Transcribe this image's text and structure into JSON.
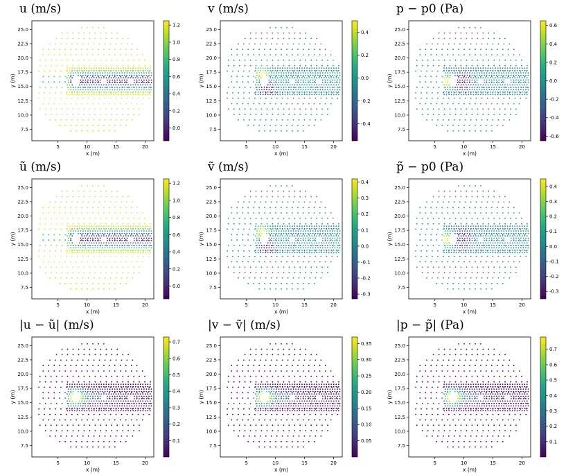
{
  "colormap": "viridis",
  "chart_data": [
    {
      "type": "scatter",
      "title": "u  (m/s)",
      "xlabel": "x (m)",
      "ylabel": "y (m)",
      "xlim": [
        0.5,
        21.5
      ],
      "ylim": [
        5.5,
        26.5
      ],
      "xticks": [
        5,
        10,
        15,
        20
      ],
      "yticks": [
        7.5,
        10.0,
        12.5,
        15.0,
        17.5,
        20.0,
        22.5,
        25.0
      ],
      "colorbar": {
        "min": -0.15,
        "max": 1.25,
        "ticks": [
          0.0,
          0.2,
          0.4,
          0.6,
          0.8,
          1.0,
          1.2
        ]
      },
      "field": "u"
    },
    {
      "type": "scatter",
      "title": "v  (m/s)",
      "xlabel": "x (m)",
      "ylabel": "y (m)",
      "xlim": [
        0.5,
        21.5
      ],
      "ylim": [
        5.5,
        26.5
      ],
      "xticks": [
        5,
        10,
        15,
        20
      ],
      "yticks": [
        7.5,
        10.0,
        12.5,
        15.0,
        17.5,
        20.0,
        22.5,
        25.0
      ],
      "colorbar": {
        "min": -0.55,
        "max": 0.5,
        "ticks": [
          -0.4,
          -0.2,
          0.0,
          0.2,
          0.4
        ]
      },
      "field": "v"
    },
    {
      "type": "scatter",
      "title": "p − p0  (Pa)",
      "xlabel": "x (m)",
      "ylabel": "y (m)",
      "xlim": [
        0.5,
        21.5
      ],
      "ylim": [
        5.5,
        26.5
      ],
      "xticks": [
        5,
        10,
        15,
        20
      ],
      "yticks": [
        7.5,
        10.0,
        12.5,
        15.0,
        17.5,
        20.0,
        22.5,
        25.0
      ],
      "colorbar": {
        "min": -0.65,
        "max": 0.65,
        "ticks": [
          -0.6,
          -0.4,
          -0.2,
          0.0,
          0.2,
          0.4,
          0.6
        ]
      },
      "field": "p"
    },
    {
      "type": "scatter",
      "title": "ũ  (m/s)",
      "xlabel": "x (m)",
      "ylabel": "y (m)",
      "xlim": [
        0.5,
        21.5
      ],
      "ylim": [
        5.5,
        26.5
      ],
      "xticks": [
        5,
        10,
        15,
        20
      ],
      "yticks": [
        7.5,
        10.0,
        12.5,
        15.0,
        17.5,
        20.0,
        22.5,
        25.0
      ],
      "colorbar": {
        "min": -0.15,
        "max": 1.25,
        "ticks": [
          0.0,
          0.2,
          0.4,
          0.6,
          0.8,
          1.0,
          1.2
        ]
      },
      "field": "u"
    },
    {
      "type": "scatter",
      "title": "ṽ  (m/s)",
      "xlabel": "x (m)",
      "ylabel": "y (m)",
      "xlim": [
        0.5,
        21.5
      ],
      "ylim": [
        5.5,
        26.5
      ],
      "xticks": [
        5,
        10,
        15,
        20
      ],
      "yticks": [
        7.5,
        10.0,
        12.5,
        15.0,
        17.5,
        20.0,
        22.5,
        25.0
      ],
      "colorbar": {
        "min": -0.33,
        "max": 0.42,
        "ticks": [
          -0.3,
          -0.2,
          -0.1,
          0.0,
          0.1,
          0.2,
          0.3,
          0.4
        ]
      },
      "field": "v"
    },
    {
      "type": "scatter",
      "title": "p̃ − p0  (Pa)",
      "xlabel": "x (m)",
      "ylabel": "y (m)",
      "xlim": [
        0.5,
        21.5
      ],
      "ylim": [
        5.5,
        26.5
      ],
      "xticks": [
        5,
        10,
        15,
        20
      ],
      "yticks": [
        7.5,
        10.0,
        12.5,
        15.0,
        17.5,
        20.0,
        22.5,
        25.0
      ],
      "colorbar": {
        "min": -0.35,
        "max": 0.45,
        "ticks": [
          -0.3,
          -0.2,
          -0.1,
          0.0,
          0.1,
          0.2,
          0.3,
          0.4
        ]
      },
      "field": "p"
    },
    {
      "type": "scatter",
      "title": "|u − ũ|  (m/s)",
      "xlabel": "x (m)",
      "ylabel": "y (m)",
      "xlim": [
        0.5,
        21.5
      ],
      "ylim": [
        5.5,
        26.5
      ],
      "xticks": [
        5,
        10,
        15,
        20
      ],
      "yticks": [
        7.5,
        10.0,
        12.5,
        15.0,
        17.5,
        20.0,
        22.5,
        25.0
      ],
      "colorbar": {
        "min": 0.0,
        "max": 0.73,
        "ticks": [
          0.1,
          0.2,
          0.3,
          0.4,
          0.5,
          0.6,
          0.7
        ]
      },
      "field": "err"
    },
    {
      "type": "scatter",
      "title": "|v − ṽ|  (m/s)",
      "xlabel": "x (m)",
      "ylabel": "y (m)",
      "xlim": [
        0.5,
        21.5
      ],
      "ylim": [
        5.5,
        26.5
      ],
      "xticks": [
        5,
        10,
        15,
        20
      ],
      "yticks": [
        7.5,
        10.0,
        12.5,
        15.0,
        17.5,
        20.0,
        22.5,
        25.0
      ],
      "colorbar": {
        "min": 0.0,
        "max": 0.37,
        "ticks": [
          0.05,
          0.1,
          0.15,
          0.2,
          0.25,
          0.3,
          0.35
        ]
      },
      "field": "err"
    },
    {
      "type": "scatter",
      "title": "|p − p̃|  (Pa)",
      "xlabel": "x (m)",
      "ylabel": "y (m)",
      "xlim": [
        0.5,
        21.5
      ],
      "ylim": [
        5.5,
        26.5
      ],
      "xticks": [
        5,
        10,
        15,
        20
      ],
      "yticks": [
        7.5,
        10.0,
        12.5,
        15.0,
        17.5,
        20.0,
        22.5,
        25.0
      ],
      "colorbar": {
        "min": 0.0,
        "max": 0.78,
        "ticks": [
          0.1,
          0.2,
          0.3,
          0.4,
          0.5,
          0.6,
          0.7
        ]
      },
      "field": "err"
    }
  ]
}
